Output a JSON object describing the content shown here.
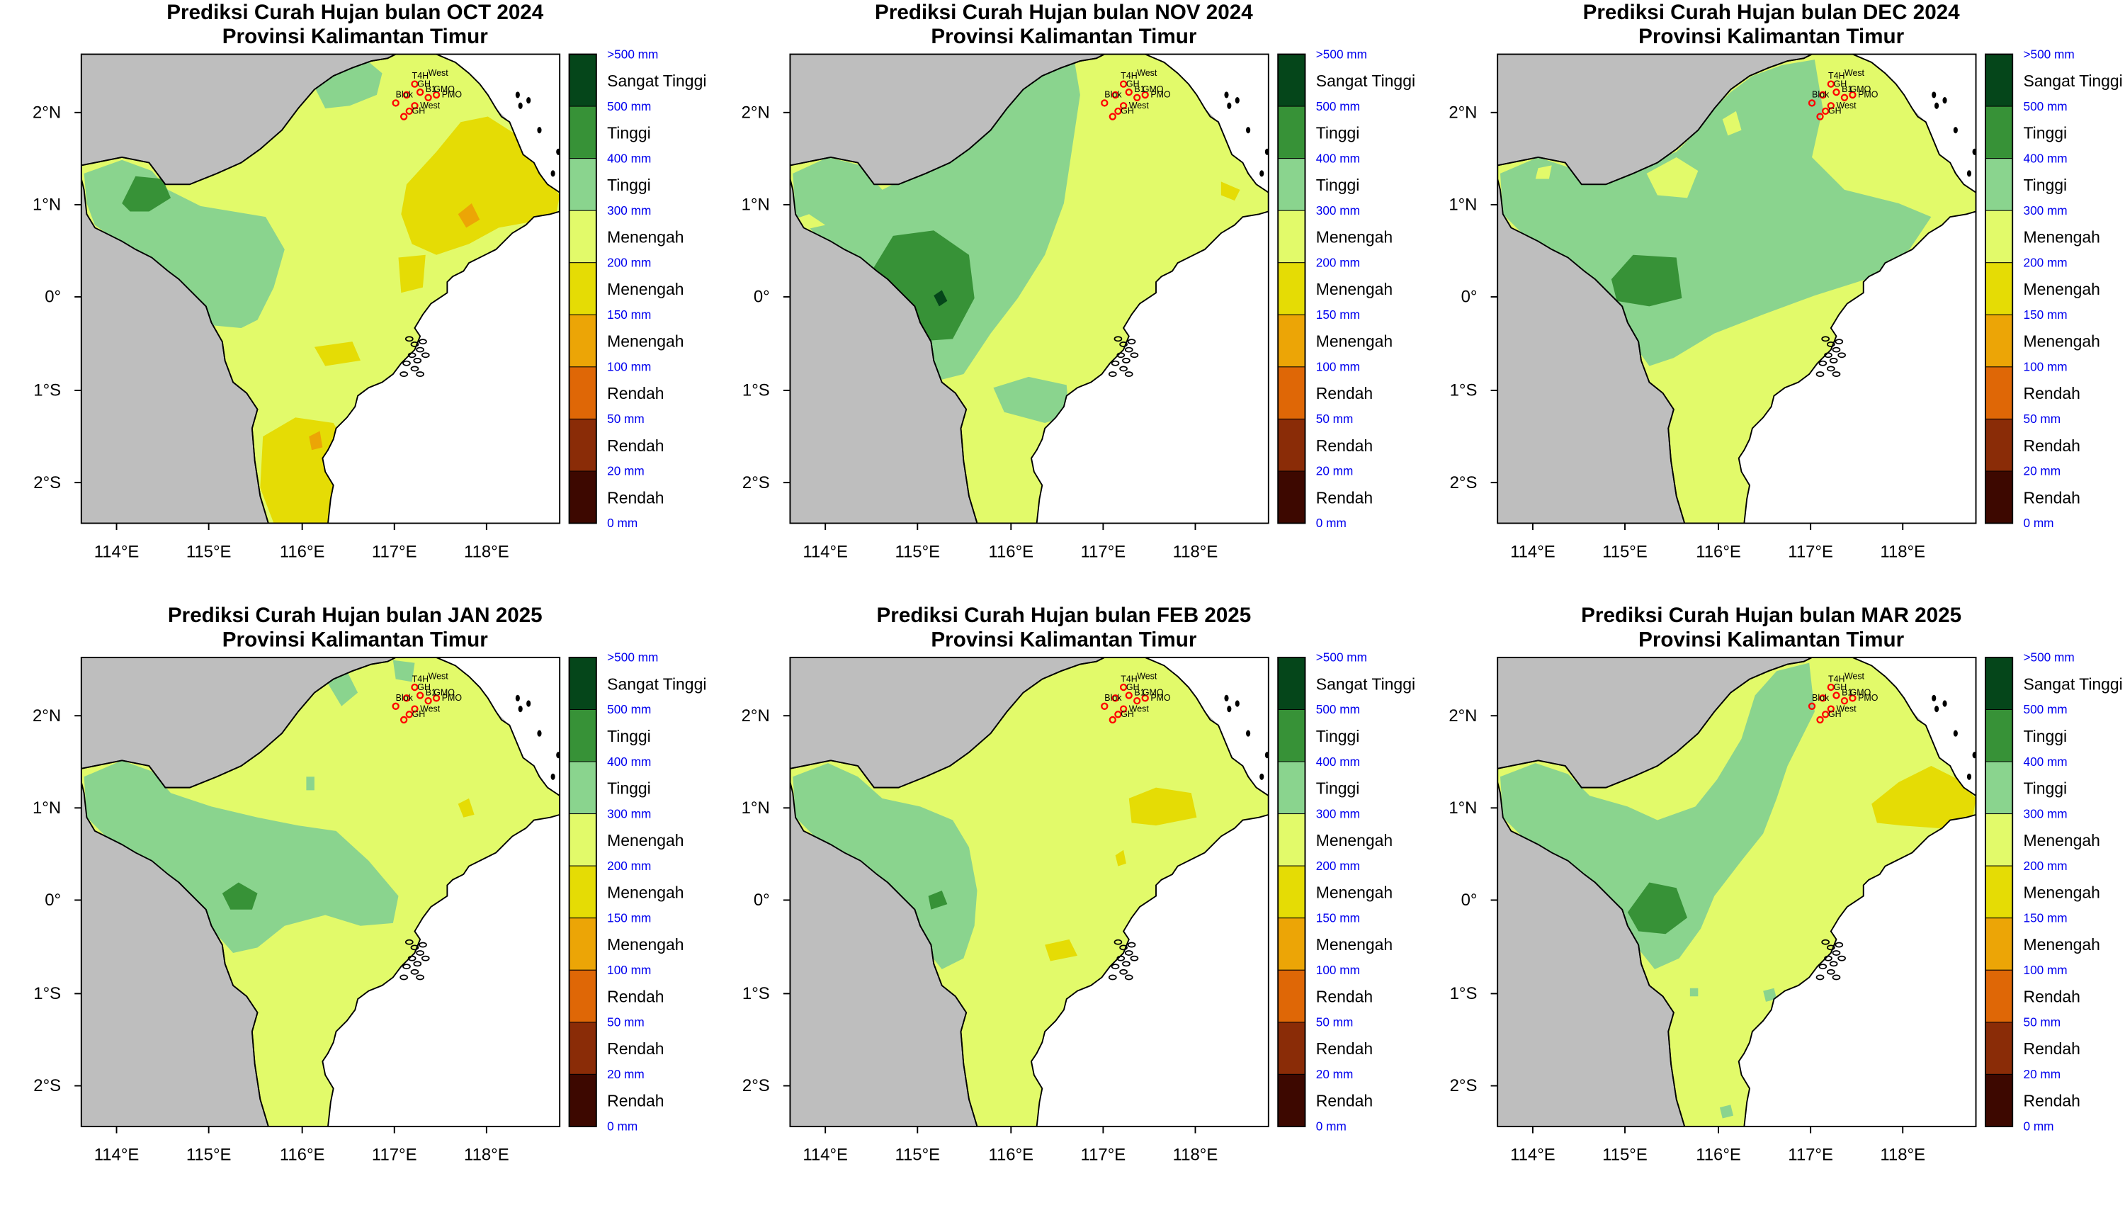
{
  "title_line2": "Provinsi Kalimantan Timur",
  "panels": [
    {
      "title": "Prediksi Curah Hujan bulan OCT 2024",
      "scheme": "oct"
    },
    {
      "title": "Prediksi Curah Hujan bulan NOV 2024",
      "scheme": "nov"
    },
    {
      "title": "Prediksi Curah Hujan bulan DEC 2024",
      "scheme": "dec"
    },
    {
      "title": "Prediksi Curah Hujan bulan JAN 2025",
      "scheme": "jan"
    },
    {
      "title": "Prediksi Curah Hujan bulan FEB 2025",
      "scheme": "feb"
    },
    {
      "title": "Prediksi Curah Hujan bulan MAR 2025",
      "scheme": "mar"
    }
  ],
  "axes": {
    "x_ticks": [
      "114°E",
      "115°E",
      "116°E",
      "117°E",
      "118°E"
    ],
    "y_ticks": [
      "2°N",
      "1°N",
      "0°",
      "1°S",
      "2°S"
    ]
  },
  "legend": {
    "thresholds": [
      ">500 mm",
      "500 mm",
      "400 mm",
      "300 mm",
      "200 mm",
      "150 mm",
      "100 mm",
      "50 mm",
      "20 mm",
      "0 mm"
    ],
    "classes": [
      "Sangat Tinggi",
      "Tinggi",
      "Tinggi",
      "Menengah",
      "Menengah",
      "Menengah",
      "Rendah",
      "Rendah",
      "Rendah"
    ],
    "colors": [
      "#05461a",
      "#379237",
      "#8ad48e",
      "#e2fa6a",
      "#e5dc05",
      "#eca506",
      "#df6706",
      "#8a2c07",
      "#3d0800"
    ]
  },
  "map_colors": {
    "outside": "#bebebe",
    "sea": "#ffffff",
    "border": "#000000",
    "station": "#ff0000"
  },
  "station_labels": [
    "T4H",
    "West",
    "GH",
    "B1",
    "GMO",
    "Blok",
    "PMO",
    "West",
    "GH"
  ]
}
